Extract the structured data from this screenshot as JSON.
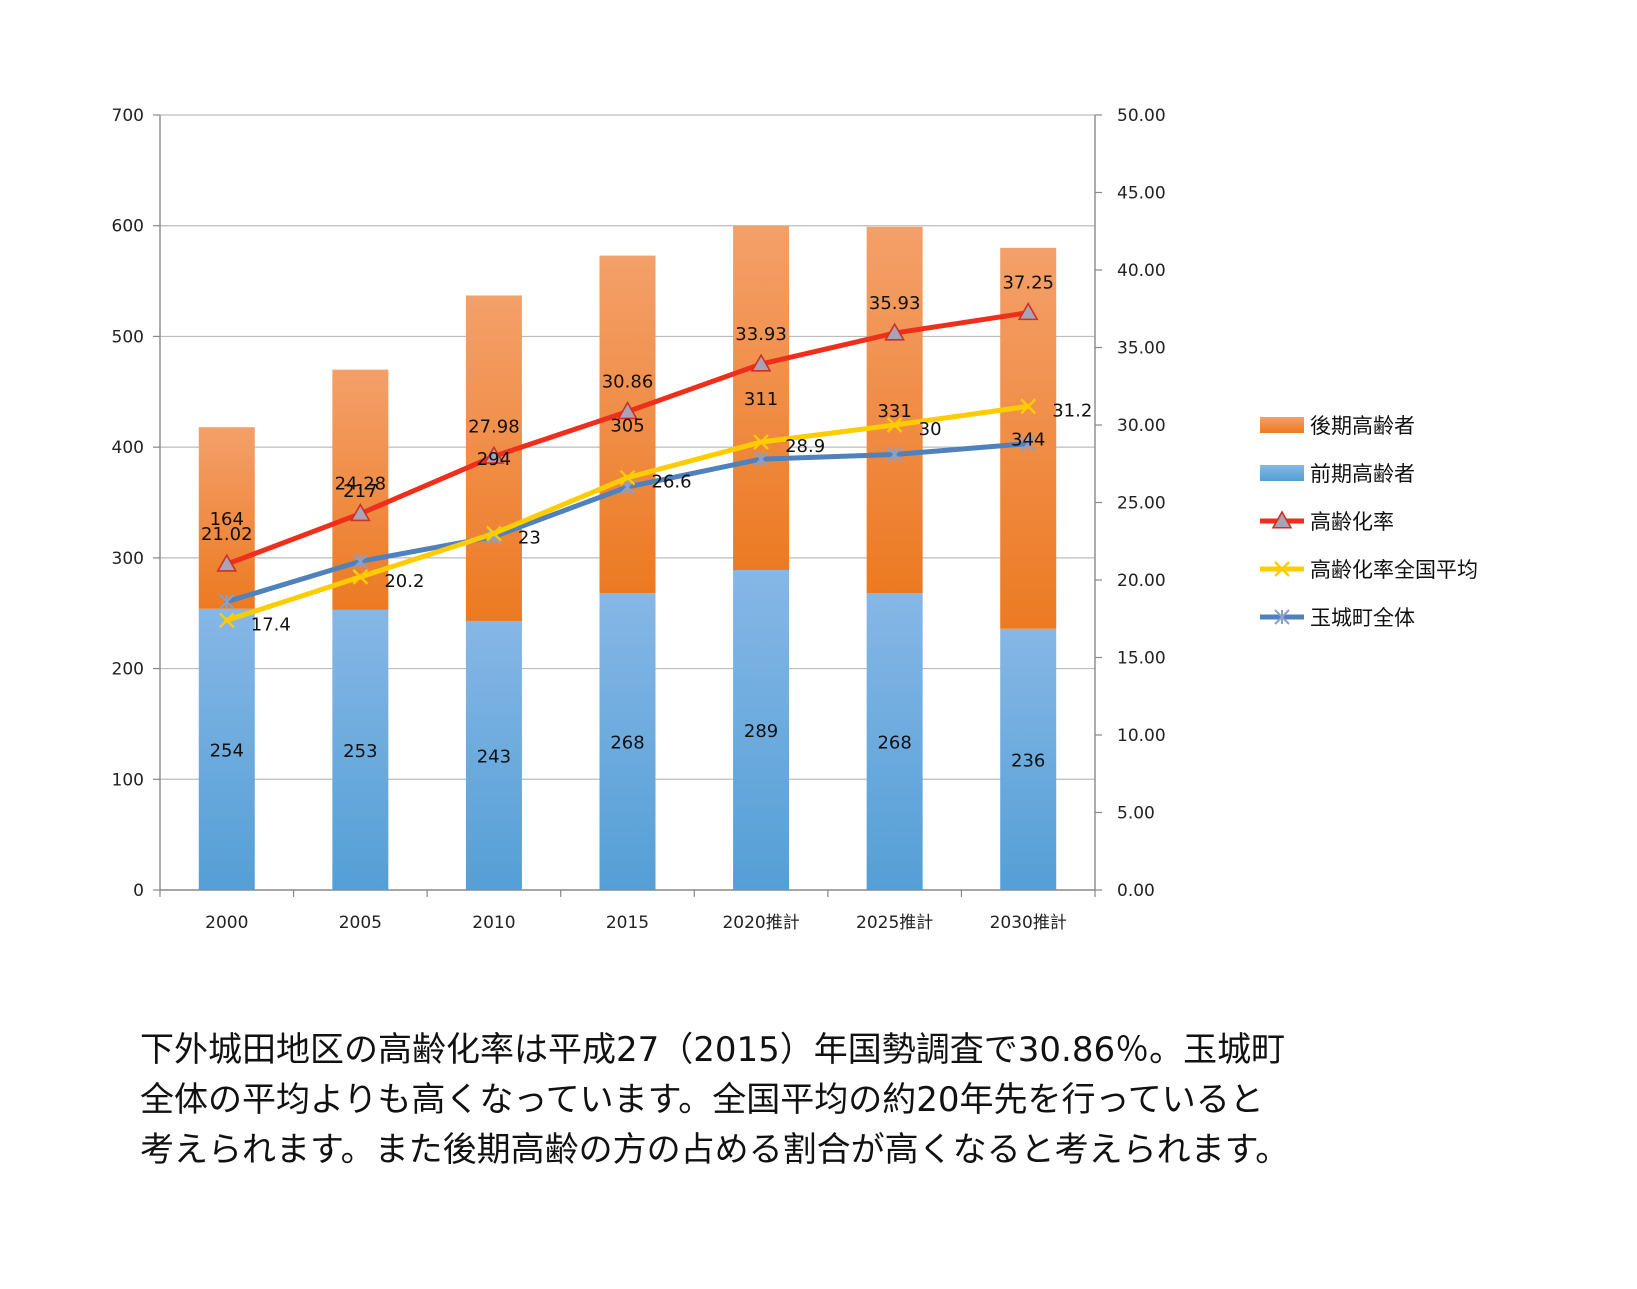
{
  "chart_data": {
    "type": "bar",
    "stacked": true,
    "categories": [
      "2000",
      "2005",
      "2010",
      "2015",
      "2020推計",
      "2025推計",
      "2030推計"
    ],
    "y_left": {
      "ylim": [
        0,
        700
      ],
      "ticks": [
        "0",
        "100",
        "200",
        "300",
        "400",
        "500",
        "600",
        "700"
      ]
    },
    "y_right": {
      "ylim": [
        0,
        50
      ],
      "ticks": [
        "0.00",
        "5.00",
        "10.00",
        "15.00",
        "20.00",
        "25.00",
        "30.00",
        "35.00",
        "40.00",
        "45.00",
        "50.00"
      ]
    },
    "grid": true,
    "legend_position": "right",
    "bar_series": [
      {
        "name": "前期高齢者",
        "color": "#5b9bd5",
        "values": [
          254,
          253,
          243,
          268,
          289,
          268,
          236
        ]
      },
      {
        "name": "後期高齢者",
        "color": "#ed7d31",
        "values": [
          164,
          217,
          294,
          305,
          311,
          331,
          344
        ]
      }
    ],
    "line_series": [
      {
        "name": "高齢化率",
        "color": "#ee2f1c",
        "marker": "triangle",
        "axis": "right",
        "values": [
          21.02,
          24.28,
          27.98,
          30.86,
          33.93,
          35.93,
          37.25
        ],
        "labels": [
          "21.02",
          "24.28",
          "27.98",
          "30.86",
          "33.93",
          "35.93",
          "37.25"
        ]
      },
      {
        "name": "高齢化率全国平均",
        "color": "#ffcc00",
        "marker": "x",
        "axis": "right",
        "values": [
          17.4,
          20.2,
          23,
          26.6,
          28.9,
          30,
          31.2
        ],
        "labels": [
          "17.4",
          "20.2",
          "23",
          "26.6",
          "28.9",
          "30",
          "31.2"
        ]
      },
      {
        "name": "玉城町全体",
        "color": "#4f81bd",
        "marker": "asterisk",
        "axis": "right",
        "values": [
          18.6,
          21.2,
          22.8,
          26.0,
          27.8,
          28.1,
          28.8
        ]
      }
    ],
    "bar_labels_front": [
      "254",
      "253",
      "243",
      "268",
      "289",
      "268",
      "236"
    ],
    "bar_labels_back": [
      "164",
      "217",
      "294",
      "305",
      "311",
      "331",
      "344"
    ]
  },
  "legend": {
    "items": [
      {
        "label": "後期高齢者",
        "kind": "bar",
        "color": "#ed7d31"
      },
      {
        "label": "前期高齢者",
        "kind": "bar",
        "color": "#5b9bd5"
      },
      {
        "label": "高齢化率",
        "kind": "line",
        "color": "#ee2f1c",
        "marker": "triangle"
      },
      {
        "label": "高齢化率全国平均",
        "kind": "line",
        "color": "#ffcc00",
        "marker": "x"
      },
      {
        "label": "玉城町全体",
        "kind": "line",
        "color": "#4f81bd",
        "marker": "asterisk"
      }
    ]
  },
  "caption": {
    "line1": "下外城田地区の高齢化率は平成27（2015）年国勢調査で30.86％。玉城町",
    "line2": "全体の平均よりも高くなっています。全国平均の約20年先を行っていると",
    "line3": "考えられます。また後期高齢の方の占める割合が高くなると考えられます。"
  }
}
